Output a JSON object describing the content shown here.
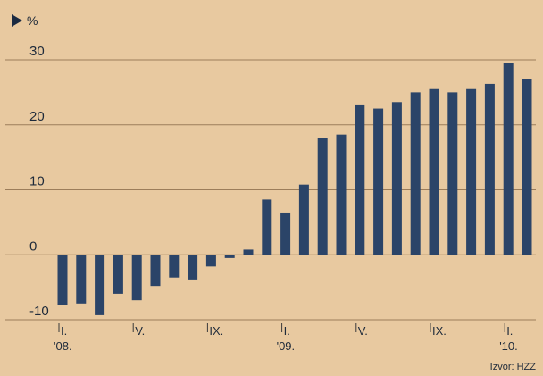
{
  "chart_data": {
    "type": "bar",
    "unit_label": "%",
    "source": "Izvor: HZZ",
    "ylim": [
      -10,
      30
    ],
    "yticks": [
      -10,
      0,
      10,
      20,
      30
    ],
    "grid": true,
    "x_tick_labels": [
      {
        "index": 0,
        "line1": "I.",
        "line2": "'08."
      },
      {
        "index": 4,
        "line1": "V.",
        "line2": ""
      },
      {
        "index": 8,
        "line1": "IX.",
        "line2": ""
      },
      {
        "index": 12,
        "line1": "I.",
        "line2": "'09."
      },
      {
        "index": 16,
        "line1": "V.",
        "line2": ""
      },
      {
        "index": 20,
        "line1": "IX.",
        "line2": ""
      },
      {
        "index": 24,
        "line1": "I.",
        "line2": "'10."
      }
    ],
    "values": [
      -7.8,
      -7.5,
      -9.3,
      -6.0,
      -7.0,
      -4.8,
      -3.5,
      -3.8,
      -1.8,
      -0.5,
      0.8,
      8.5,
      6.5,
      10.8,
      18.0,
      18.5,
      23.0,
      22.5,
      23.5,
      25.0,
      25.5,
      25.0,
      25.5,
      26.3,
      29.5,
      27.0
    ],
    "series_color": "#2b4468",
    "marker_color": "#1b2a41"
  }
}
